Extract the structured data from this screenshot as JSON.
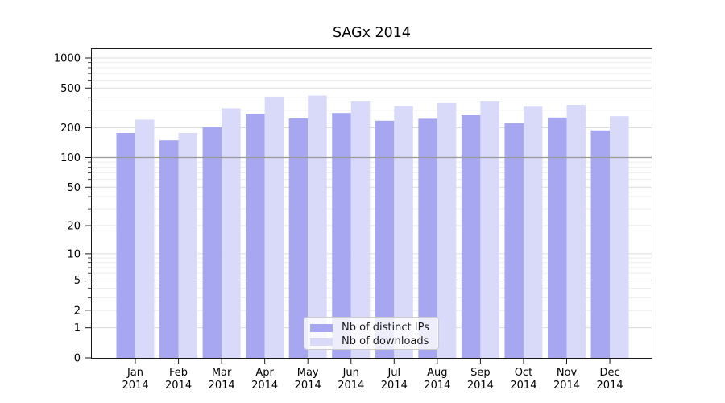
{
  "figure": {
    "background": "#ffffff",
    "text_color": "#000000",
    "spine_color": "#1a1a1a",
    "grid_major_color": "#dcdcdc",
    "grid_minor_color": "#ededed"
  },
  "chart_data": {
    "type": "bar",
    "title": "SAGx 2014",
    "xlabel": "",
    "ylabel": "",
    "categories": [
      "Jan",
      "Feb",
      "Mar",
      "Apr",
      "May",
      "Jun",
      "Jul",
      "Aug",
      "Sep",
      "Oct",
      "Nov",
      "Dec"
    ],
    "category_year_line": "2014",
    "series": [
      {
        "name": "Nb of distinct IPs",
        "color": "#a6a6f1",
        "values": [
          177,
          149,
          202,
          276,
          248,
          281,
          235,
          246,
          267,
          223,
          253,
          188
        ]
      },
      {
        "name": "Nb of downloads",
        "color": "#d9d9f9",
        "values": [
          241,
          177,
          313,
          410,
          421,
          372,
          330,
          354,
          372,
          326,
          340,
          261
        ]
      }
    ],
    "y_scale": "log1p",
    "ylim": [
      0,
      1200
    ],
    "y_major_ticks": [
      0,
      1,
      2,
      5,
      10,
      20,
      50,
      100,
      200,
      500,
      1000
    ],
    "y_minor_ticks": [
      3,
      4,
      6,
      7,
      8,
      9,
      30,
      40,
      60,
      70,
      80,
      90,
      300,
      400,
      600,
      700,
      800,
      900
    ],
    "grid": true,
    "reference_line": {
      "value": 100,
      "color": "#999999"
    },
    "legend_position": "lower center"
  }
}
